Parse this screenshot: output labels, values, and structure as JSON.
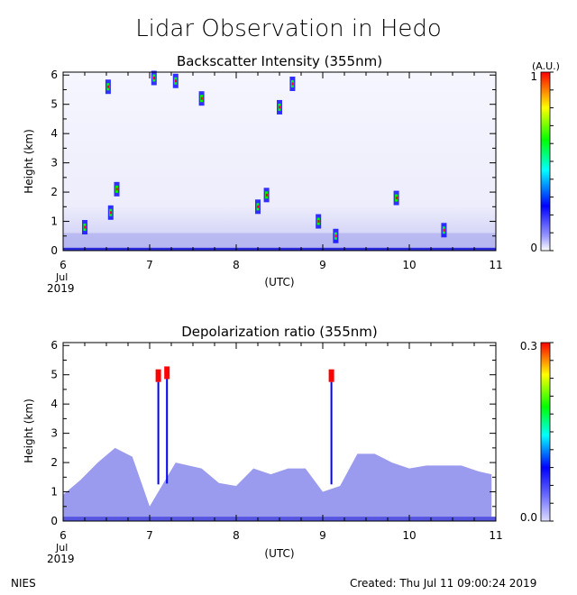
{
  "title": "Lidar Observation in Hedo",
  "footer": {
    "left": "NIES",
    "right": "Created: Thu Jul 11 09:00:24 2019"
  },
  "colors": {
    "low": "#ffffff",
    "mid_blue": "#0000ff",
    "cyan": "#00ffff",
    "green": "#00ff00",
    "yellow": "#ffff00",
    "high": "#ff0000"
  },
  "chart_data": [
    {
      "type": "heatmap",
      "title": "Backscatter Intensity (355nm)",
      "xlabel": "(UTC)",
      "ylabel": "Height (km)",
      "x_ticks": [
        "6",
        "7",
        "8",
        "9",
        "10",
        "11"
      ],
      "x_sublabels": [
        "Jul",
        "2019"
      ],
      "xlim": [
        6,
        11
      ],
      "y_ticks": [
        "0",
        "1",
        "2",
        "3",
        "4",
        "5",
        "6"
      ],
      "ylim": [
        0,
        6.1
      ],
      "colorbar": {
        "unit": "(A.U.)",
        "min_label": "0",
        "max_label": "1",
        "range": [
          0,
          1
        ]
      },
      "features": {
        "surface_layer_height_km": 0.1,
        "cloud_layers": [
          {
            "x": 6.25,
            "h": 0.8
          },
          {
            "x": 6.55,
            "h": 1.3
          },
          {
            "x": 6.62,
            "h": 2.1
          },
          {
            "x": 6.52,
            "h": 5.6
          },
          {
            "x": 7.05,
            "h": 5.9
          },
          {
            "x": 7.3,
            "h": 5.8
          },
          {
            "x": 7.6,
            "h": 5.2
          },
          {
            "x": 8.25,
            "h": 1.5
          },
          {
            "x": 8.35,
            "h": 1.9
          },
          {
            "x": 8.5,
            "h": 4.9
          },
          {
            "x": 8.65,
            "h": 5.7
          },
          {
            "x": 8.95,
            "h": 1.0
          },
          {
            "x": 9.15,
            "h": 0.5
          },
          {
            "x": 9.85,
            "h": 1.8
          },
          {
            "x": 10.4,
            "h": 0.7
          }
        ]
      }
    },
    {
      "type": "heatmap",
      "title": "Depolarization ratio (355nm)",
      "xlabel": "(UTC)",
      "ylabel": "Height (km)",
      "x_ticks": [
        "6",
        "7",
        "8",
        "9",
        "10",
        "11"
      ],
      "x_sublabels": [
        "Jul",
        "2019"
      ],
      "xlim": [
        6,
        11
      ],
      "y_ticks": [
        "0",
        "1",
        "2",
        "3",
        "4",
        "5",
        "6"
      ],
      "ylim": [
        0,
        6.1
      ],
      "colorbar": {
        "unit": "",
        "min_label": "0.0",
        "max_label": "0.3",
        "range": [
          0,
          0.3
        ]
      },
      "features": {
        "aerosol_layer_top_km": [
          {
            "x": 6.0,
            "h": 0.9
          },
          {
            "x": 6.2,
            "h": 1.4
          },
          {
            "x": 6.4,
            "h": 2.0
          },
          {
            "x": 6.6,
            "h": 2.5
          },
          {
            "x": 6.8,
            "h": 2.2
          },
          {
            "x": 7.0,
            "h": 0.5
          },
          {
            "x": 7.3,
            "h": 2.0
          },
          {
            "x": 7.6,
            "h": 1.8
          },
          {
            "x": 7.8,
            "h": 1.3
          },
          {
            "x": 8.0,
            "h": 1.2
          },
          {
            "x": 8.2,
            "h": 1.8
          },
          {
            "x": 8.4,
            "h": 1.6
          },
          {
            "x": 8.6,
            "h": 1.8
          },
          {
            "x": 8.8,
            "h": 1.8
          },
          {
            "x": 9.0,
            "h": 1.0
          },
          {
            "x": 9.2,
            "h": 1.2
          },
          {
            "x": 9.4,
            "h": 2.3
          },
          {
            "x": 9.6,
            "h": 2.3
          },
          {
            "x": 9.8,
            "h": 2.0
          },
          {
            "x": 10.0,
            "h": 1.8
          },
          {
            "x": 10.2,
            "h": 1.9
          },
          {
            "x": 10.4,
            "h": 1.9
          },
          {
            "x": 10.6,
            "h": 1.9
          },
          {
            "x": 10.8,
            "h": 1.7
          },
          {
            "x": 10.95,
            "h": 1.6
          }
        ],
        "high_depol_clouds": [
          {
            "x": 7.1,
            "h": 5.0
          },
          {
            "x": 7.2,
            "h": 5.1
          },
          {
            "x": 9.1,
            "h": 5.0
          }
        ]
      }
    }
  ]
}
